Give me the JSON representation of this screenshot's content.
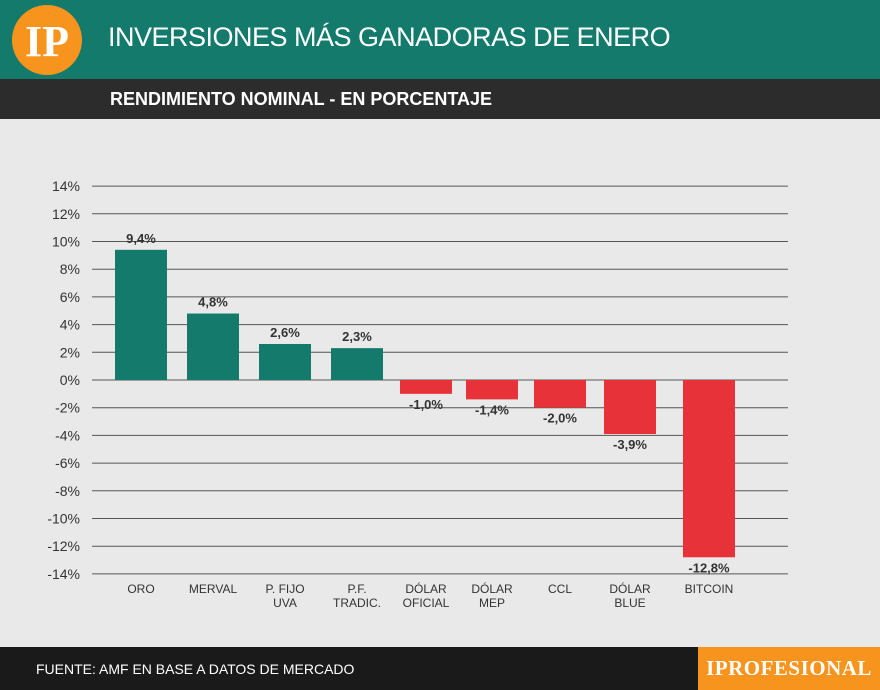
{
  "header": {
    "logo_text": "IP",
    "title": "INVERSIONES MÁS GANADORAS DE ENERO"
  },
  "subheader": {
    "title": "RENDIMIENTO NOMINAL - EN PORCENTAJE"
  },
  "footer": {
    "source": "FUENTE: AMF EN BASE A DATOS DE MERCADO",
    "brand": "IPROFESIONAL"
  },
  "colors": {
    "positive": "#137a6c",
    "negative": "#e8323a",
    "orange": "#f7941d"
  },
  "chart_data": {
    "type": "bar",
    "title": "RENDIMIENTO NOMINAL - EN PORCENTAJE",
    "categories": [
      [
        "ORO"
      ],
      [
        "MERVAL"
      ],
      [
        "P. FIJO",
        "UVA"
      ],
      [
        "P.F.",
        "TRADIC."
      ],
      [
        "DÓLAR",
        "OFICIAL"
      ],
      [
        "DÓLAR",
        "MEP"
      ],
      [
        "CCL"
      ],
      [
        "DÓLAR",
        "BLUE"
      ],
      [
        "BITCOIN"
      ]
    ],
    "values": [
      9.4,
      4.8,
      2.6,
      2.3,
      -1.0,
      -1.4,
      -2.0,
      -3.9,
      -12.8
    ],
    "value_labels": [
      "9,4%",
      "4,8%",
      "2,6%",
      "2,3%",
      "-1,0%",
      "-1,4%",
      "-2,0%",
      "-3,9%",
      "-12,8%"
    ],
    "yticks": [
      14,
      12,
      10,
      8,
      6,
      4,
      2,
      0,
      -2,
      -4,
      -6,
      -8,
      -10,
      -12,
      -14
    ],
    "ytick_labels": [
      "14%",
      "12%",
      "10%",
      "8%",
      "6%",
      "4%",
      "2%",
      "0%",
      "-2%",
      "-4%",
      "-6%",
      "-8%",
      "-10%",
      "-12%",
      "-14%"
    ],
    "ylim": [
      -14,
      14
    ],
    "xlabel": "",
    "ylabel": "",
    "grid": true
  }
}
